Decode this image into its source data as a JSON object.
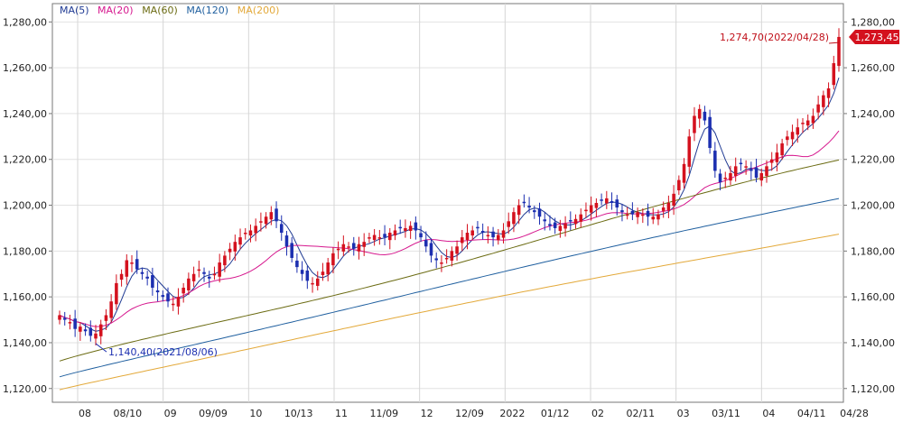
{
  "chart_data": {
    "type": "candlestick",
    "legend": [
      {
        "label": "MA(5)",
        "color": "#1f3a93"
      },
      {
        "label": "MA(20)",
        "color": "#d6188e"
      },
      {
        "label": "MA(60)",
        "color": "#6b6b12"
      },
      {
        "label": "MA(120)",
        "color": "#1f5f9f"
      },
      {
        "label": "MA(200)",
        "color": "#e3a93a"
      }
    ],
    "y_ticks": [
      "1,280,00",
      "1,260,00",
      "1,240,00",
      "1,220,00",
      "1,200,00",
      "1,180,00",
      "1,160,00",
      "1,140,00",
      "1,120,00"
    ],
    "y_tick_values": [
      1280,
      1260,
      1240,
      1220,
      1200,
      1180,
      1160,
      1140,
      1120
    ],
    "ylim": [
      1114,
      1288
    ],
    "x_labels": [
      "08",
      "08/10",
      "09",
      "09/09",
      "10",
      "10/13",
      "11",
      "11/09",
      "12",
      "12/09",
      "2022",
      "01/12",
      "02",
      "02/11",
      "03",
      "03/11",
      "04",
      "04/11",
      "04/28"
    ],
    "month_separators": [
      "08",
      "09",
      "10",
      "11",
      "12",
      "2022",
      "02",
      "03",
      "04"
    ],
    "candle_colors": {
      "up": "#d4111e",
      "down": "#1c2fb0"
    },
    "closes": [
      1152,
      1150,
      1149,
      1146,
      1147,
      1145,
      1143,
      1144,
      1148,
      1152,
      1158,
      1166,
      1170,
      1176,
      1175,
      1172,
      1170,
      1168,
      1164,
      1162,
      1160,
      1158,
      1157,
      1160,
      1164,
      1168,
      1170,
      1172,
      1170,
      1168,
      1170,
      1175,
      1178,
      1181,
      1184,
      1186,
      1188,
      1189,
      1191,
      1193,
      1195,
      1197,
      1193,
      1188,
      1182,
      1177,
      1173,
      1170,
      1167,
      1166,
      1168,
      1171,
      1175,
      1179,
      1181,
      1183,
      1182,
      1181,
      1183,
      1184,
      1186,
      1187,
      1186,
      1186,
      1188,
      1189,
      1190,
      1190,
      1191,
      1189,
      1186,
      1182,
      1178,
      1176,
      1175,
      1177,
      1180,
      1182,
      1186,
      1188,
      1189,
      1190,
      1188,
      1187,
      1186,
      1187,
      1189,
      1193,
      1197,
      1200,
      1201,
      1199,
      1197,
      1195,
      1193,
      1191,
      1190,
      1191,
      1192,
      1193,
      1194,
      1196,
      1198,
      1200,
      1201,
      1202,
      1203,
      1201,
      1199,
      1197,
      1196,
      1196,
      1197,
      1196,
      1195,
      1195,
      1196,
      1199,
      1201,
      1205,
      1211,
      1218,
      1230,
      1239,
      1242,
      1237,
      1225,
      1215,
      1210,
      1212,
      1214,
      1217,
      1218,
      1217,
      1215,
      1212,
      1214,
      1217,
      1220,
      1223,
      1227,
      1230,
      1232,
      1234,
      1236,
      1237,
      1239,
      1244,
      1248,
      1251,
      1262,
      1273.45
    ],
    "annotation_high": "1,274,70(2022/04/28)",
    "annotation_low": "1,140,40(2021/08/06)",
    "last_price_label": "1,273,45",
    "ma_series": [
      {
        "name": "MA(5)",
        "start": 1149,
        "end": 1255
      },
      {
        "name": "MA(20)",
        "start": 1143,
        "end": 1233
      },
      {
        "name": "MA(60)",
        "start": 1130,
        "end": 1218
      },
      {
        "name": "MA(120)",
        "start": 1125,
        "end": 1203
      },
      {
        "name": "MA(200)",
        "start": 1120,
        "end": 1188
      }
    ]
  }
}
